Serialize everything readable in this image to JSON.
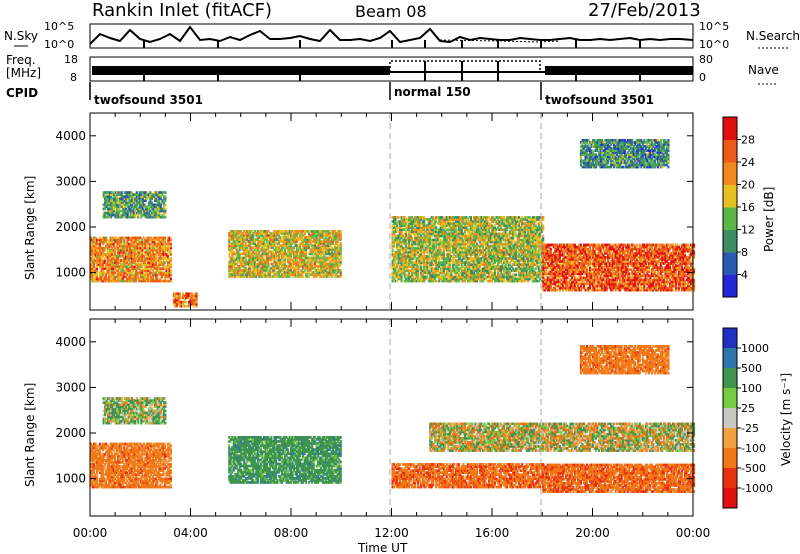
{
  "header": {
    "station": "Rankin Inlet (fitACF)",
    "beam": "Beam 08",
    "date": "27/Feb/2013"
  },
  "top_panels": {
    "nsky_label": "N.Sky",
    "nsky_ticks": [
      "10^5",
      "10^0"
    ],
    "nsearch_label": "N.Search",
    "nsearch_ticks": [
      "10^5",
      "10^0"
    ],
    "freq_label_1": "Freq.",
    "freq_label_2": "[MHz]",
    "freq_ticks": [
      "18",
      "8"
    ],
    "nave_label": "Nave",
    "nave_ticks": [
      "80",
      "0"
    ],
    "cpid_label": "CPID",
    "cpid_segments": [
      {
        "label": "twofsound 3501",
        "start_hour": 0,
        "end_hour": 12
      },
      {
        "label": "normal 150",
        "start_hour": 12,
        "end_hour": 18
      },
      {
        "label": "twofsound 3501",
        "start_hour": 18,
        "end_hour": 24
      }
    ]
  },
  "axes": {
    "x_title": "Time UT",
    "x_tick_labels": [
      "00:00",
      "04:00",
      "08:00",
      "12:00",
      "16:00",
      "20:00",
      "00:00"
    ],
    "y_title": "Slant Range [km]",
    "y_tick_labels": [
      "1000",
      "2000",
      "3000",
      "4000"
    ]
  },
  "power_scale": {
    "title": "Power [dB]",
    "labels": [
      "4",
      "8",
      "12",
      "16",
      "20",
      "24",
      "28"
    ],
    "colors": [
      "#2424d8",
      "#2a5ab0",
      "#3e8c62",
      "#5ab84a",
      "#e6c020",
      "#f08a20",
      "#f05a18",
      "#e01010"
    ]
  },
  "velocity_scale": {
    "title": "Velocity [m s⁻¹]",
    "labels": [
      "1000",
      "500",
      "100",
      "25",
      "-25",
      "-100",
      "-500",
      "-1000"
    ],
    "colors": [
      "#2030c0",
      "#2e74a8",
      "#3e9450",
      "#78cc40",
      "#c8c8c0",
      "#f0a040",
      "#f07818",
      "#e83010",
      "#e01010"
    ]
  },
  "chart_data": [
    {
      "type": "heatmap",
      "title": "Power",
      "xlabel": "Time UT",
      "ylabel": "Slant Range [km]",
      "xlim_hours": [
        0,
        24
      ],
      "ylim_km": [
        180,
        4500
      ],
      "color_scale_db": [
        0,
        32
      ],
      "echo_regions": [
        {
          "t_start": 0.0,
          "t_end": 3.2,
          "r_min": 800,
          "r_max": 1750,
          "value_db": 22
        },
        {
          "t_start": 0.5,
          "t_end": 3.0,
          "r_min": 2200,
          "r_max": 2750,
          "value_db": 12
        },
        {
          "t_start": 3.3,
          "t_end": 4.2,
          "r_min": 250,
          "r_max": 550,
          "value_db": 24
        },
        {
          "t_start": 5.5,
          "t_end": 10.0,
          "r_min": 900,
          "r_max": 1900,
          "value_db": 18
        },
        {
          "t_start": 12.0,
          "t_end": 18.0,
          "r_min": 800,
          "r_max": 2200,
          "value_db": 16
        },
        {
          "t_start": 18.0,
          "t_end": 24.0,
          "r_min": 600,
          "r_max": 1600,
          "value_db": 26
        },
        {
          "t_start": 19.5,
          "t_end": 23.0,
          "r_min": 3300,
          "r_max": 3900,
          "value_db": 10
        }
      ]
    },
    {
      "type": "heatmap",
      "title": "Velocity",
      "xlabel": "Time UT",
      "ylabel": "Slant Range [km]",
      "xlim_hours": [
        0,
        24
      ],
      "ylim_km": [
        180,
        4500
      ],
      "color_scale_ms": [
        -1000,
        1000
      ],
      "echo_regions": [
        {
          "t_start": 0.0,
          "t_end": 3.2,
          "r_min": 800,
          "r_max": 1750,
          "value_ms": -300
        },
        {
          "t_start": 0.5,
          "t_end": 3.0,
          "r_min": 2200,
          "r_max": 2750,
          "value_ms": 100
        },
        {
          "t_start": 5.5,
          "t_end": 10.0,
          "r_min": 900,
          "r_max": 1900,
          "value_ms": 300
        },
        {
          "t_start": 12.0,
          "t_end": 18.0,
          "r_min": 800,
          "r_max": 1300,
          "value_ms": -400
        },
        {
          "t_start": 13.5,
          "t_end": 24.0,
          "r_min": 1600,
          "r_max": 2200,
          "value_ms": 0
        },
        {
          "t_start": 18.0,
          "t_end": 24.0,
          "r_min": 700,
          "r_max": 1300,
          "value_ms": -400
        },
        {
          "t_start": 19.5,
          "t_end": 23.0,
          "r_min": 3300,
          "r_max": 3900,
          "value_ms": -300
        }
      ]
    }
  ]
}
